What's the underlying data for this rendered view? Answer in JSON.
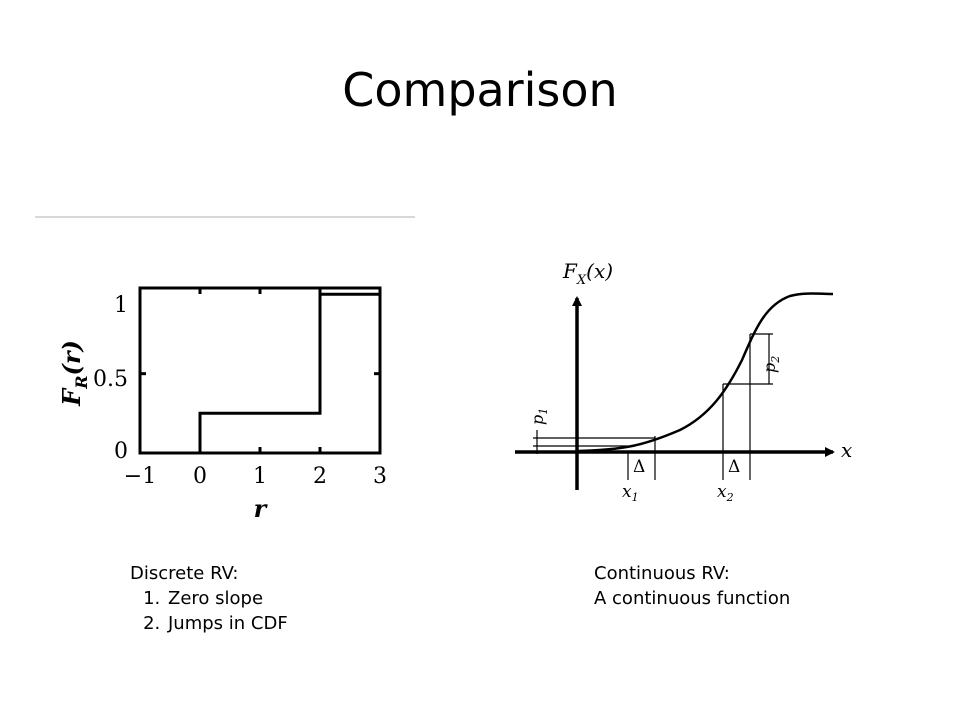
{
  "slide": {
    "title": "Comparison"
  },
  "left_figure": {
    "y_label_main": "F",
    "y_label_sub": "R",
    "y_label_arg": "(r)",
    "x_label": "r",
    "x_ticks": [
      "−1",
      "0",
      "1",
      "2",
      "3"
    ],
    "y_ticks": [
      "0",
      "0.5",
      "1"
    ],
    "chart_data": {
      "type": "line",
      "step": true,
      "x": [
        -1,
        0,
        0,
        2,
        2,
        3
      ],
      "y": [
        0,
        0,
        0.25,
        0.25,
        1,
        1
      ],
      "xlim": [
        -1,
        3
      ],
      "ylim": [
        0,
        1.04
      ],
      "xlabel": "r",
      "ylabel": "F_R(r)"
    }
  },
  "right_figure": {
    "y_axis_label_main": "F",
    "y_axis_label_sub": "X",
    "y_axis_label_arg": "(x)",
    "x_axis_label": "x",
    "x1_label": "x",
    "x1_sub": "1",
    "x2_label": "x",
    "x2_sub": "2",
    "delta1": "Δ",
    "delta2": "Δ",
    "p1_label": "p",
    "p1_sub": "1",
    "p2_label": "p",
    "p2_sub": "2"
  },
  "captions": {
    "discrete_heading": "Discrete RV:",
    "discrete_items": [
      "Zero slope",
      "Jumps in CDF"
    ],
    "continuous_heading": "Continuous RV:",
    "continuous_line": "A continuous function"
  }
}
